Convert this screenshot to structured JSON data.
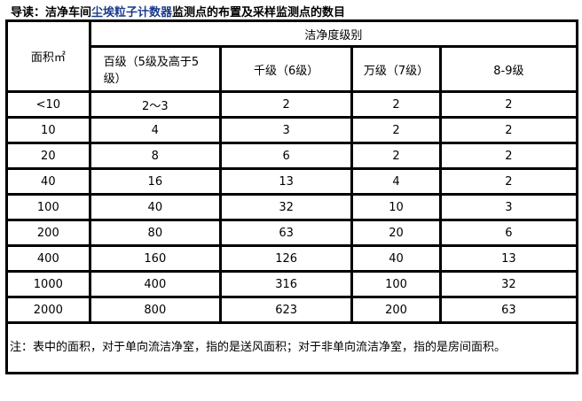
{
  "title": {
    "prefix": "导读：洁净车间",
    "link": "尘埃粒子计数器",
    "suffix": "监测点的布置及采样监测点的数目"
  },
  "table": {
    "area_header": "面积㎡",
    "group_header": "洁净度级别",
    "columns": [
      "百级（5级及高于5级）",
      "千级（6级）",
      "万级（7级）",
      "8-9级"
    ],
    "rows": [
      [
        "<10",
        "2～3",
        "2",
        "2",
        "2"
      ],
      [
        "10",
        "4",
        "3",
        "2",
        "2"
      ],
      [
        "20",
        "8",
        "6",
        "2",
        "2"
      ],
      [
        "40",
        "16",
        "13",
        "4",
        "2"
      ],
      [
        "100",
        "40",
        "32",
        "10",
        "3"
      ],
      [
        "200",
        "80",
        "63",
        "20",
        "6"
      ],
      [
        "400",
        "160",
        "126",
        "40",
        "13"
      ],
      [
        "1000",
        "400",
        "316",
        "100",
        "32"
      ],
      [
        "2000",
        "800",
        "623",
        "200",
        "63"
      ]
    ],
    "note": "注：表中的面积，对于单向流洁净室，指的是送风面积；对于非单向流洁净室，指的是房间面积。"
  }
}
